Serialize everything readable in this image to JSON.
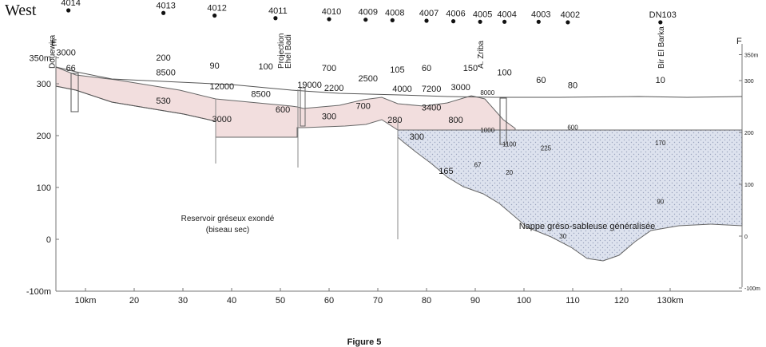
{
  "corner_label": "West",
  "figure_caption": "Figure 5",
  "section": {
    "left_end": "E",
    "right_end": "F"
  },
  "left_axis": [
    {
      "v": 350,
      "label": "350m"
    },
    {
      "v": 300,
      "label": "300"
    },
    {
      "v": 200,
      "label": "200"
    },
    {
      "v": 100,
      "label": "100"
    },
    {
      "v": 0,
      "label": "0"
    },
    {
      "v": -100,
      "label": "-100m"
    }
  ],
  "right_axis": [
    {
      "v": 350,
      "label": "350m"
    },
    {
      "v": 300,
      "label": "300"
    },
    {
      "v": 200,
      "label": "200"
    },
    {
      "v": 100,
      "label": "100"
    },
    {
      "v": 0,
      "label": "0"
    },
    {
      "v": -100,
      "label": "-100m"
    }
  ],
  "x_axis": [
    {
      "v": 10,
      "label": "10km"
    },
    {
      "v": 20,
      "label": "20"
    },
    {
      "v": 30,
      "label": "30"
    },
    {
      "v": 40,
      "label": "40"
    },
    {
      "v": 50,
      "label": "50"
    },
    {
      "v": 60,
      "label": "60"
    },
    {
      "v": 70,
      "label": "70"
    },
    {
      "v": 80,
      "label": "80"
    },
    {
      "v": 90,
      "label": "90"
    },
    {
      "v": 100,
      "label": "100"
    },
    {
      "v": 110,
      "label": "110"
    },
    {
      "v": 120,
      "label": "120"
    },
    {
      "v": 130,
      "label": "130km"
    }
  ],
  "place_names": [
    {
      "name": "Douewira",
      "km": 3
    },
    {
      "name": "Projection",
      "km": 50
    },
    {
      "name": "Ehel Badi",
      "km": 51.5
    },
    {
      "name": "A. Zriba",
      "km": 91
    },
    {
      "name": "Bir El Barka",
      "km": 128
    }
  ],
  "wells": [
    {
      "id": "4014",
      "km": 6.5,
      "elev": 300
    },
    {
      "id": "4013",
      "km": 26,
      "elev": 295
    },
    {
      "id": "4012",
      "km": 36.5,
      "elev": 290
    },
    {
      "id": "4011",
      "km": 49,
      "elev": 285
    },
    {
      "id": "4010",
      "km": 60,
      "elev": 283
    },
    {
      "id": "4009",
      "km": 67.5,
      "elev": 282
    },
    {
      "id": "4008",
      "km": 73,
      "elev": 281
    },
    {
      "id": "4007",
      "km": 80,
      "elev": 280
    },
    {
      "id": "4006",
      "km": 85.5,
      "elev": 279
    },
    {
      "id": "4005",
      "km": 91,
      "elev": 278
    },
    {
      "id": "4004",
      "km": 96,
      "elev": 278
    },
    {
      "id": "4003",
      "km": 103,
      "elev": 278
    },
    {
      "id": "4002",
      "km": 109,
      "elev": 277
    },
    {
      "id": "DN103",
      "km": 128,
      "elev": 277
    }
  ],
  "values": [
    {
      "t": "3000",
      "km": 6,
      "elev": 293
    },
    {
      "t": "66",
      "km": 7,
      "elev": 263
    },
    {
      "t": "200",
      "km": 26,
      "elev": 283
    },
    {
      "t": "8500",
      "km": 26.5,
      "elev": 255
    },
    {
      "t": "530",
      "km": 26,
      "elev": 200
    },
    {
      "t": "90",
      "km": 36.5,
      "elev": 268
    },
    {
      "t": "12000",
      "km": 38,
      "elev": 228
    },
    {
      "t": "3000",
      "km": 38,
      "elev": 165
    },
    {
      "t": "100",
      "km": 47,
      "elev": 266
    },
    {
      "t": "8500",
      "km": 46,
      "elev": 213
    },
    {
      "t": "600",
      "km": 50.5,
      "elev": 183
    },
    {
      "t": "19000",
      "km": 56,
      "elev": 231
    },
    {
      "t": "700",
      "km": 60,
      "elev": 263
    },
    {
      "t": "2200",
      "km": 61,
      "elev": 225
    },
    {
      "t": "300",
      "km": 60,
      "elev": 170
    },
    {
      "t": "2500",
      "km": 68,
      "elev": 243
    },
    {
      "t": "700",
      "km": 67,
      "elev": 190
    },
    {
      "t": "105",
      "km": 74,
      "elev": 260
    },
    {
      "t": "4000",
      "km": 75,
      "elev": 223
    },
    {
      "t": "280",
      "km": 73.5,
      "elev": 163
    },
    {
      "t": "60",
      "km": 80,
      "elev": 263
    },
    {
      "t": "7200",
      "km": 81,
      "elev": 223
    },
    {
      "t": "3400",
      "km": 81,
      "elev": 187
    },
    {
      "t": "800",
      "km": 86,
      "elev": 163
    },
    {
      "t": "300",
      "km": 78,
      "elev": 131
    },
    {
      "t": "150",
      "km": 89,
      "elev": 263
    },
    {
      "t": "3000",
      "km": 87,
      "elev": 226
    },
    {
      "t": "100",
      "km": 96,
      "elev": 255
    },
    {
      "t": "60",
      "km": 103.5,
      "elev": 240
    },
    {
      "t": "80",
      "km": 110,
      "elev": 230
    },
    {
      "t": "10",
      "km": 128,
      "elev": 240
    },
    {
      "t": "165",
      "km": 84,
      "elev": 65
    },
    {
      "t": "8000",
      "km": 92.5,
      "elev": 217,
      "small": true
    },
    {
      "t": "1000",
      "km": 92.5,
      "elev": 145,
      "small": true
    },
    {
      "t": "1100",
      "km": 97,
      "elev": 118,
      "small": true
    },
    {
      "t": "225",
      "km": 104.5,
      "elev": 110,
      "small": true
    },
    {
      "t": "600",
      "km": 110,
      "elev": 150,
      "small": true
    },
    {
      "t": "170",
      "km": 128,
      "elev": 120,
      "small": true
    },
    {
      "t": "67",
      "km": 90.5,
      "elev": 78,
      "small": true
    },
    {
      "t": "20",
      "km": 97,
      "elev": 63,
      "small": true
    },
    {
      "t": "30",
      "km": 108,
      "elev": -60,
      "small": true
    },
    {
      "t": "90",
      "km": 128,
      "elev": 7,
      "small": true
    }
  ],
  "labels": {
    "reservoir_line1": "Reservoir gréseux exondé",
    "reservoir_line2": "(biseau sec)",
    "nappe": "Nappe gréso-sableuse généralisée"
  },
  "colors": {
    "reservoir_fill": "#f2dede",
    "nappe_fill": "#dde2ee",
    "line": "#555555"
  }
}
